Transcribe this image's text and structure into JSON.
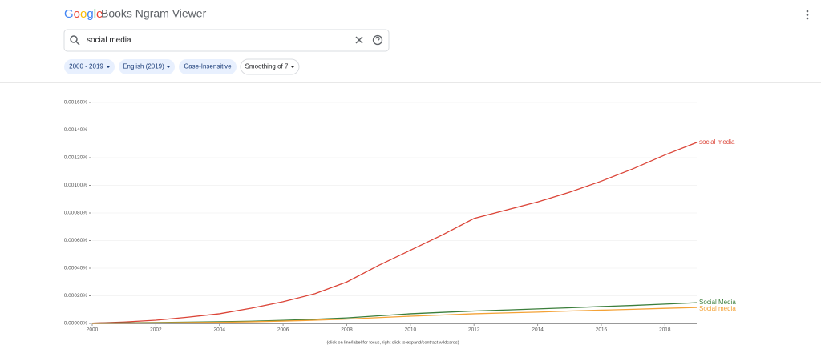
{
  "header": {
    "logo": "Google",
    "title": "Books Ngram Viewer"
  },
  "search": {
    "query": "social media"
  },
  "chips": [
    "2000 - 2019",
    "English (2019)",
    "Case-Insensitive",
    "Smoothing of 7"
  ],
  "chart_data": {
    "type": "line",
    "x": [
      2000,
      2001,
      2002,
      2003,
      2004,
      2005,
      2006,
      2007,
      2008,
      2009,
      2010,
      2011,
      2012,
      2013,
      2014,
      2015,
      2016,
      2017,
      2018,
      2019
    ],
    "series": [
      {
        "name": "social media",
        "color": "#db4437",
        "values": [
          2e-06,
          1e-05,
          2.3e-05,
          4.5e-05,
          7e-05,
          0.00011,
          0.000157,
          0.000215,
          0.0003,
          0.00042,
          0.00053,
          0.00064,
          0.00076,
          0.00082,
          0.00088,
          0.00095,
          0.00103,
          0.00112,
          0.00122,
          0.00131
        ]
      },
      {
        "name": "Social Media",
        "color": "#3b7e3b",
        "values": [
          2e-06,
          4e-06,
          6e-06,
          9e-06,
          1.2e-05,
          1.6e-05,
          2.2e-05,
          3e-05,
          4e-05,
          5.5e-05,
          7e-05,
          8e-05,
          9e-05,
          9.7e-05,
          0.000105,
          0.000113,
          0.000122,
          0.00013,
          0.00014,
          0.00015
        ]
      },
      {
        "name": "Social media",
        "color": "#f4a236",
        "values": [
          1e-06,
          2e-06,
          4e-06,
          6e-06,
          8e-06,
          1.2e-05,
          1.7e-05,
          2.3e-05,
          3.1e-05,
          4.2e-05,
          5.2e-05,
          6.1e-05,
          7e-05,
          7.6e-05,
          8.2e-05,
          9e-05,
          9.6e-05,
          0.000102,
          0.000109,
          0.000115
        ]
      }
    ],
    "xlim": [
      2000,
      2019
    ],
    "xticks": [
      2000,
      2002,
      2004,
      2006,
      2008,
      2010,
      2012,
      2014,
      2016,
      2018
    ],
    "ylim": [
      0,
      0.0016
    ],
    "yticks": [
      {
        "value": 0,
        "label": "0.00000%"
      },
      {
        "value": 0.0002,
        "label": "0.00020%"
      },
      {
        "value": 0.0004,
        "label": "0.00040%"
      },
      {
        "value": 0.0006,
        "label": "0.00060%"
      },
      {
        "value": 0.0008,
        "label": "0.00080%"
      },
      {
        "value": 0.001,
        "label": "0.00100%"
      },
      {
        "value": 0.0012,
        "label": "0.00120%"
      },
      {
        "value": 0.0014,
        "label": "0.00140%"
      },
      {
        "value": 0.0016,
        "label": "0.00160%"
      }
    ],
    "grid": true,
    "annotation": "(click on line/label for focus, right click to expand/contract wildcards)"
  }
}
